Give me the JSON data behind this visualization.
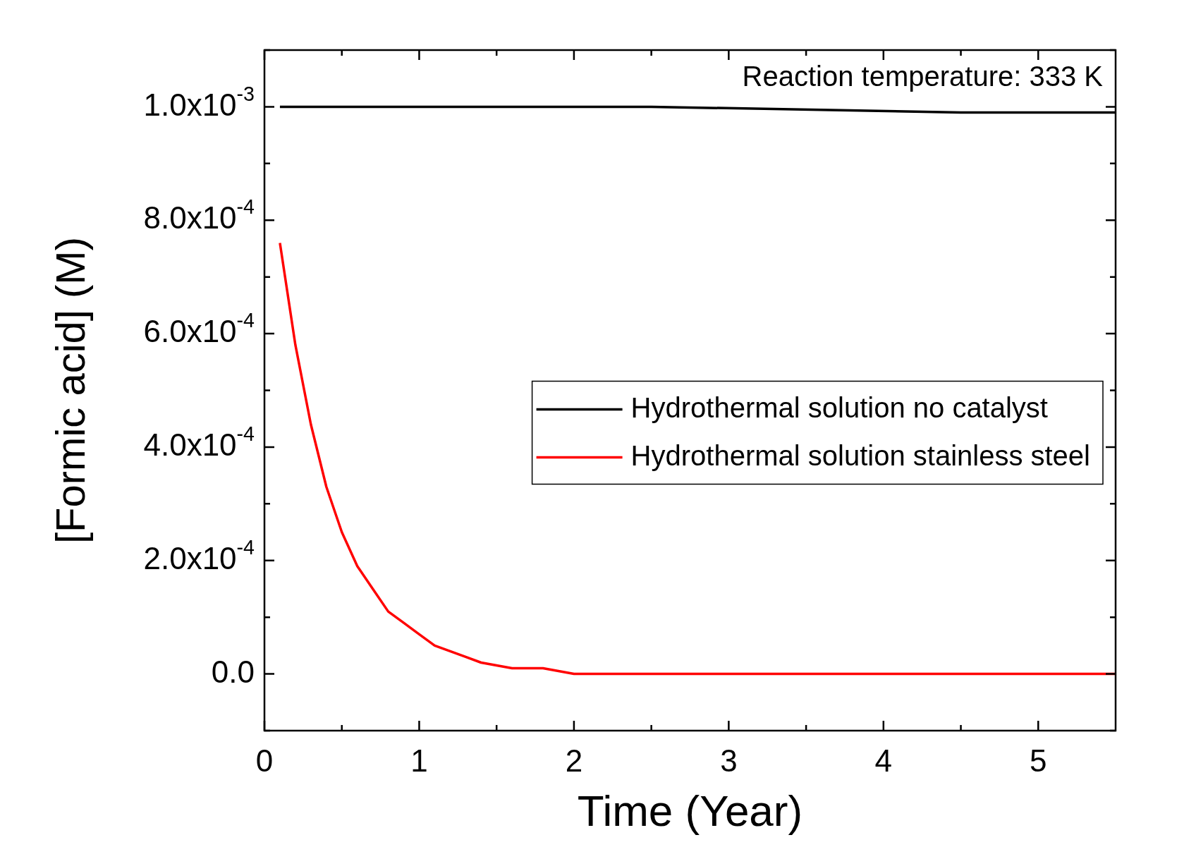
{
  "chart_data": {
    "type": "line",
    "xlabel": "Time (Year)",
    "ylabel": "[Formic acid] (M)",
    "annotations": [
      "Reaction temperature: 333 K"
    ],
    "xlim": [
      0,
      5.5
    ],
    "xticks": [
      0,
      {
        "value": 0.5,
        "label": null
      },
      1,
      {
        "value": 1.5,
        "label": null
      },
      2,
      {
        "value": 2.5,
        "label": null
      },
      3,
      {
        "value": 3.5,
        "label": null
      },
      4,
      {
        "value": 4.5,
        "label": null
      },
      5
    ],
    "ylim": [
      -0.0001,
      0.0011
    ],
    "yticks": [
      {
        "value": -0.0001,
        "label": null
      },
      {
        "value": 0,
        "label": "0.0"
      },
      {
        "value": 0.0001,
        "label": null
      },
      {
        "value": 0.0002,
        "label": "2.0x10$^{-4}$"
      },
      {
        "value": 0.0003,
        "label": null
      },
      {
        "value": 0.0004,
        "label": "4.0x10$^{-4}$"
      },
      {
        "value": 0.0005,
        "label": null
      },
      {
        "value": 0.0006,
        "label": "6.0x10$^{-4}$"
      },
      {
        "value": 0.0007,
        "label": null
      },
      {
        "value": 0.0008,
        "label": "8.0x10$^{-4}$"
      },
      {
        "value": 0.0009,
        "label": null
      },
      {
        "value": 0.001,
        "label": "1.0x10$^{-3}$"
      },
      {
        "value": 0.0011,
        "label": null
      }
    ],
    "grid": false,
    "legend": "right",
    "marker": "none",
    "line_style": "solid",
    "series": [
      {
        "name": "Hydrothermal solution no catalyst",
        "color": "#000000",
        "x": [
          0.1,
          2.5,
          4.5,
          5.5
        ],
        "values": [
          0.001,
          0.001,
          0.00099,
          0.00099
        ]
      },
      {
        "name": "Hydrothermal solution stainless steel",
        "color": "#ff0000",
        "x": [
          0.1,
          0.2,
          0.3,
          0.4,
          0.5,
          0.6,
          0.7,
          0.8,
          0.9,
          1.0,
          1.1,
          1.2,
          1.3,
          1.4,
          1.6,
          1.8,
          2.0,
          2.5,
          3.0,
          4.0,
          5.5
        ],
        "values": [
          0.00076,
          0.00058,
          0.00044,
          0.00033,
          0.00025,
          0.00019,
          0.00015,
          0.00011,
          9e-05,
          7e-05,
          5e-05,
          4e-05,
          3e-05,
          2e-05,
          1e-05,
          1e-05,
          0,
          0,
          0,
          0,
          0
        ]
      }
    ]
  }
}
